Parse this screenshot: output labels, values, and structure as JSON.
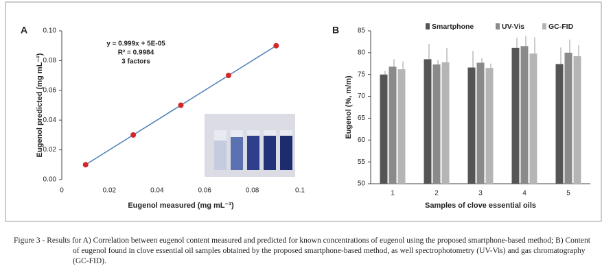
{
  "chart_data": [
    {
      "type": "scatter",
      "label": "A",
      "x": [
        0.01,
        0.03,
        0.05,
        0.07,
        0.09
      ],
      "values": [
        0.01,
        0.03,
        0.05,
        0.07,
        0.09
      ],
      "color": "#d62728",
      "line_color": "#4a7fb5",
      "xlabel": "Eugenol measured (mg mL⁻¹)",
      "ylabel": "Eugenol predicted (mg mL⁻¹)",
      "annotations": [
        "y = 0.999x + 5E-05",
        "R² = 0.9984",
        "3 factors"
      ],
      "xlim": [
        0,
        0.1
      ],
      "xticks": [
        0,
        0.02,
        0.04,
        0.06,
        0.08,
        0.1
      ],
      "ylim": [
        0,
        0.1
      ],
      "yticks": [
        {
          "value": 0,
          "label": "0.00"
        },
        {
          "value": 0.02,
          "label": "0.02"
        },
        {
          "value": 0.04,
          "label": "0.04"
        },
        {
          "value": 0.06,
          "label": "0.06"
        },
        {
          "value": 0.08,
          "label": "0.08"
        },
        {
          "value": 0.1,
          "label": "0.10"
        }
      ]
    },
    {
      "type": "bar",
      "label": "B",
      "categories": [
        "1",
        "2",
        "3",
        "4",
        "5"
      ],
      "series": [
        {
          "name": "Smartphone",
          "color": "#555555",
          "values": [
            75.0,
            78.5,
            76.6,
            81.1,
            77.4
          ],
          "errors": [
            0.8,
            3.5,
            3.8,
            2.3,
            3.8
          ]
        },
        {
          "name": "UV-Vis",
          "color": "#8a8a8a",
          "values": [
            76.8,
            77.3,
            77.7,
            81.5,
            80.0
          ],
          "errors": [
            1.7,
            1.0,
            1.0,
            2.3,
            3.0
          ]
        },
        {
          "name": "GC-FID",
          "color": "#b5b5b5",
          "values": [
            76.2,
            77.8,
            76.5,
            79.8,
            79.2
          ],
          "errors": [
            1.8,
            3.3,
            1.0,
            3.7,
            2.5
          ]
        }
      ],
      "xlabel": "Samples of clove essential oils",
      "ylabel": "Eugenol (%, m/m)",
      "ylim": [
        50,
        85
      ],
      "yticks": [
        50,
        55,
        60,
        65,
        70,
        75,
        80,
        85
      ],
      "legend": "top"
    }
  ],
  "caption": "Figure 3 - Results for A) Correlation between eugenol content measured and predicted for known concentrations of eugenol using the proposed smartphone-based method; B) Content of eugenol found in clove essential oil samples obtained by the proposed smartphone-based method, as well spectrophotometry (UV-Vis) and gas chromatography (GC-FID)."
}
